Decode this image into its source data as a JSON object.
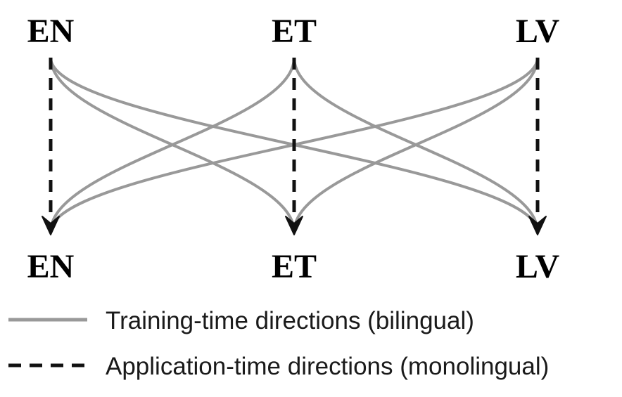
{
  "source_nodes": [
    "EN",
    "ET",
    "LV"
  ],
  "target_nodes": [
    "EN",
    "ET",
    "LV"
  ],
  "edge_colors": {
    "training": "#999999",
    "application": "#111111"
  },
  "legend": {
    "training_label": "Training-time directions (bilingual)",
    "application_label": "Application-time directions (monolingual)"
  }
}
